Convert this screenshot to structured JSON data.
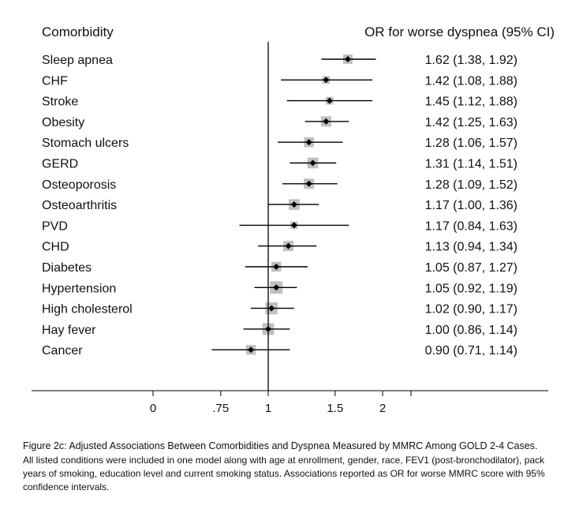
{
  "chart_data": {
    "type": "forest",
    "headers": {
      "label": "Comorbidity",
      "estimate": "OR for worse dyspnea (95% CI)"
    },
    "rows": [
      {
        "label": "Sleep apnea",
        "or": 1.62,
        "lo": 1.38,
        "hi": 1.92,
        "text": "1.62 (1.38, 1.92)"
      },
      {
        "label": "CHF",
        "or": 1.42,
        "lo": 1.08,
        "hi": 1.88,
        "text": "1.42 (1.08, 1.88)"
      },
      {
        "label": "Stroke",
        "or": 1.45,
        "lo": 1.12,
        "hi": 1.88,
        "text": "1.45 (1.12, 1.88)"
      },
      {
        "label": "Obesity",
        "or": 1.42,
        "lo": 1.25,
        "hi": 1.63,
        "text": "1.42 (1.25, 1.63)"
      },
      {
        "label": "Stomach ulcers",
        "or": 1.28,
        "lo": 1.06,
        "hi": 1.57,
        "text": "1.28 (1.06, 1.57)"
      },
      {
        "label": "GERD",
        "or": 1.31,
        "lo": 1.14,
        "hi": 1.51,
        "text": "1.31 (1.14, 1.51)"
      },
      {
        "label": "Osteoporosis",
        "or": 1.28,
        "lo": 1.09,
        "hi": 1.52,
        "text": "1.28 (1.09, 1.52)"
      },
      {
        "label": "Osteoarthritis",
        "or": 1.17,
        "lo": 1.0,
        "hi": 1.36,
        "text": "1.17 (1.00, 1.36)"
      },
      {
        "label": "PVD",
        "or": 1.17,
        "lo": 0.84,
        "hi": 1.63,
        "text": "1.17 (0.84, 1.63)"
      },
      {
        "label": "CHD",
        "or": 1.13,
        "lo": 0.94,
        "hi": 1.34,
        "text": "1.13 (0.94, 1.34)"
      },
      {
        "label": "Diabetes",
        "or": 1.05,
        "lo": 0.87,
        "hi": 1.27,
        "text": "1.05 (0.87, 1.27)"
      },
      {
        "label": "Hypertension",
        "or": 1.05,
        "lo": 0.92,
        "hi": 1.19,
        "text": "1.05 (0.92, 1.19)"
      },
      {
        "label": "High cholesterol",
        "or": 1.02,
        "lo": 0.9,
        "hi": 1.17,
        "text": "1.02 (0.90, 1.17)"
      },
      {
        "label": "Hay fever",
        "or": 1.0,
        "lo": 0.86,
        "hi": 1.14,
        "text": "1.00 (0.86, 1.14)"
      },
      {
        "label": "Cancer",
        "or": 0.9,
        "lo": 0.71,
        "hi": 1.14,
        "text": "0.90 (0.71, 1.14)"
      }
    ],
    "weights": [
      0.45,
      0.25,
      0.25,
      0.55,
      0.5,
      0.6,
      0.55,
      0.6,
      0.2,
      0.55,
      0.5,
      0.8,
      0.75,
      0.7,
      0.5
    ],
    "null_line": 1,
    "x_ticks": [
      {
        "value": 0,
        "label": "0"
      },
      {
        "value": 0.75,
        "label": ".75"
      },
      {
        "value": 1,
        "label": "1"
      },
      {
        "value": 1.5,
        "label": "1.5"
      },
      {
        "value": 2,
        "label": "2"
      }
    ],
    "colors": {
      "box": "#c0c0c0",
      "line": "#000000",
      "point": "#000000"
    }
  },
  "caption": {
    "title": "Figure 2c: Adjusted Associations Between Comorbidities and Dyspnea Measured by MMRC Among GOLD 2-4 Cases.",
    "body": "All listed conditions were included in one model along with age at enrollment, gender, race, FEV1 (post-bronchodilator), pack years of smoking, education level and current smoking status. Associations reported as OR for worse MMRC score with 95% confidence intervals."
  }
}
